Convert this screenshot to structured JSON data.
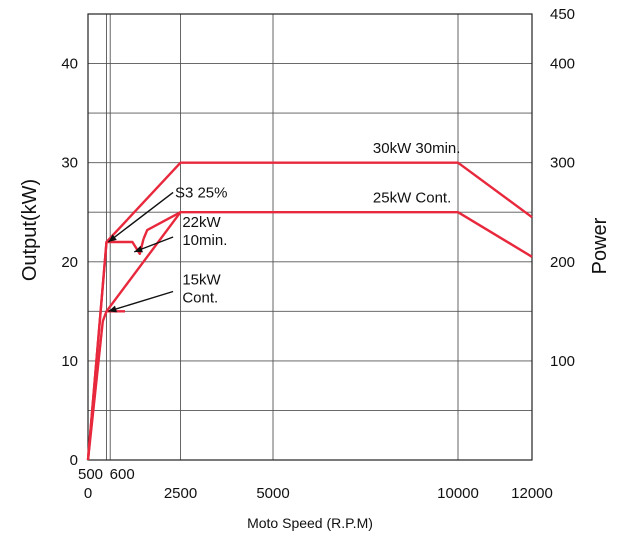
{
  "chart_data": {
    "type": "line",
    "xlabel": "Moto Speed (R.P.M)",
    "ylabel": "Output(kW)",
    "ylabel_right": "Power",
    "xlim": [
      0,
      12000
    ],
    "ylim": [
      0,
      45
    ],
    "ylim_right": [
      0,
      450
    ],
    "grid": true,
    "x_ticks": [
      {
        "value": 0,
        "label": "0"
      },
      {
        "value": 2500,
        "label": "2500"
      },
      {
        "value": 5000,
        "label": "5000"
      },
      {
        "value": 10000,
        "label": "10000"
      },
      {
        "value": 12000,
        "label": "12000"
      }
    ],
    "x_ticks_extra": [
      {
        "value": 500,
        "label": "500"
      },
      {
        "value": 600,
        "label": "600"
      }
    ],
    "y_ticks": [
      {
        "value": 0,
        "label": "0"
      },
      {
        "value": 10,
        "label": "10"
      },
      {
        "value": 20,
        "label": "20"
      },
      {
        "value": 30,
        "label": "30"
      },
      {
        "value": 40,
        "label": "40"
      }
    ],
    "y_ticks_right": [
      {
        "value": 100,
        "label": "100"
      },
      {
        "value": 200,
        "label": "200"
      },
      {
        "value": 300,
        "label": "300"
      },
      {
        "value": 400,
        "label": "400"
      },
      {
        "value": 450,
        "label": "450"
      }
    ],
    "series": [
      {
        "name": "30kW 30min.",
        "color": "#e8283c",
        "x": [
          0,
          500,
          2500,
          10000,
          12000
        ],
        "y": [
          0,
          22,
          30,
          30,
          24.5
        ]
      },
      {
        "name": "25kW Cont.",
        "color": "#e8283c",
        "x": [
          500,
          2500,
          10000,
          12000
        ],
        "y": [
          15,
          25,
          25,
          20.5
        ]
      },
      {
        "name": "S3 25%",
        "color": "#e8283c",
        "x": [
          0,
          500,
          1200,
          1400,
          1500
        ],
        "y": [
          0,
          22,
          22,
          20.8,
          22.3
        ]
      },
      {
        "name": "22kW 10min.",
        "color": "#e8283c",
        "x": [
          1500,
          1600,
          2500
        ],
        "y": [
          22.3,
          23.2,
          25
        ]
      },
      {
        "name": "15kW Cont.",
        "color": "#e8283c",
        "x": [
          0,
          400,
          500,
          1000
        ],
        "y": [
          0,
          14,
          15,
          15
        ]
      }
    ],
    "annotations": [
      {
        "text": "30kW 30min.",
        "x": 7700,
        "y": 31
      },
      {
        "text": "25kW Cont.",
        "x": 7700,
        "y": 26
      },
      {
        "text": "S3 25%",
        "x": 2350,
        "y": 26.5
      },
      {
        "text": "22kW",
        "x": 2550,
        "y": 23.5
      },
      {
        "text": "10min.",
        "x": 2550,
        "y": 21.7
      },
      {
        "text": "15kW",
        "x": 2550,
        "y": 17.7
      },
      {
        "text": "Cont.",
        "x": 2550,
        "y": 15.9
      }
    ],
    "leaders": [
      {
        "from": [
          2300,
          27
        ],
        "to": [
          550,
          22
        ]
      },
      {
        "from": [
          2300,
          22.5
        ],
        "to": [
          1250,
          21
        ]
      },
      {
        "from": [
          2300,
          17
        ],
        "to": [
          550,
          15
        ]
      }
    ]
  }
}
